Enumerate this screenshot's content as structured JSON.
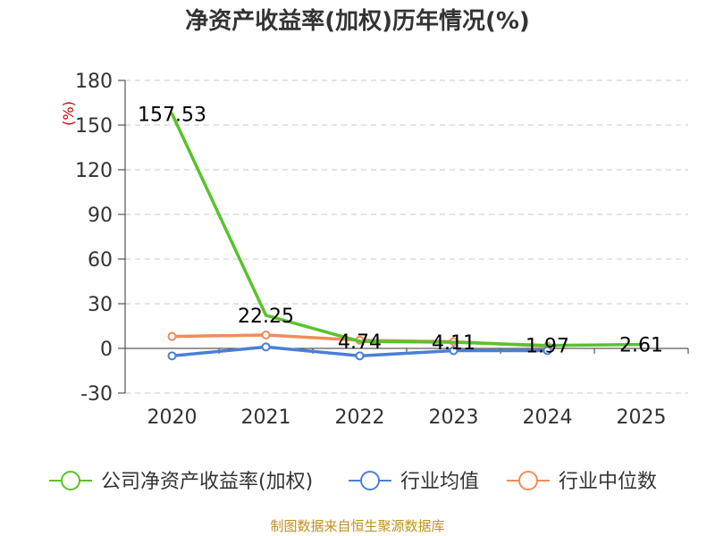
{
  "chart_data": {
    "type": "line",
    "title": "净资产收益率(加权)历年情况(%)",
    "unit": "(%)",
    "categories": [
      "2020",
      "2021",
      "2022",
      "2023",
      "2024",
      "2025"
    ],
    "ylim": [
      -30,
      180
    ],
    "yticks": [
      -30,
      0,
      30,
      60,
      90,
      120,
      150,
      180
    ],
    "grid": true,
    "legend_position": "bottom",
    "series": [
      {
        "name": "公司净资产收益率(加权)",
        "color": "#5ac22b",
        "values": [
          157.53,
          22.25,
          4.74,
          4.11,
          1.97,
          2.61
        ],
        "labels": [
          "157.53",
          "22.25",
          "4.74",
          "4.11",
          "1.97",
          "2.61"
        ]
      },
      {
        "name": "行业均值",
        "color": "#4a7fd6",
        "values": [
          -5,
          1,
          -5,
          -1.5,
          -1.5,
          null
        ]
      },
      {
        "name": "行业中位数",
        "color": "#f08c5a",
        "values": [
          8,
          9,
          5.5,
          4.5,
          1.5,
          null
        ]
      }
    ]
  },
  "source": "制图数据来自恒生聚源数据库"
}
